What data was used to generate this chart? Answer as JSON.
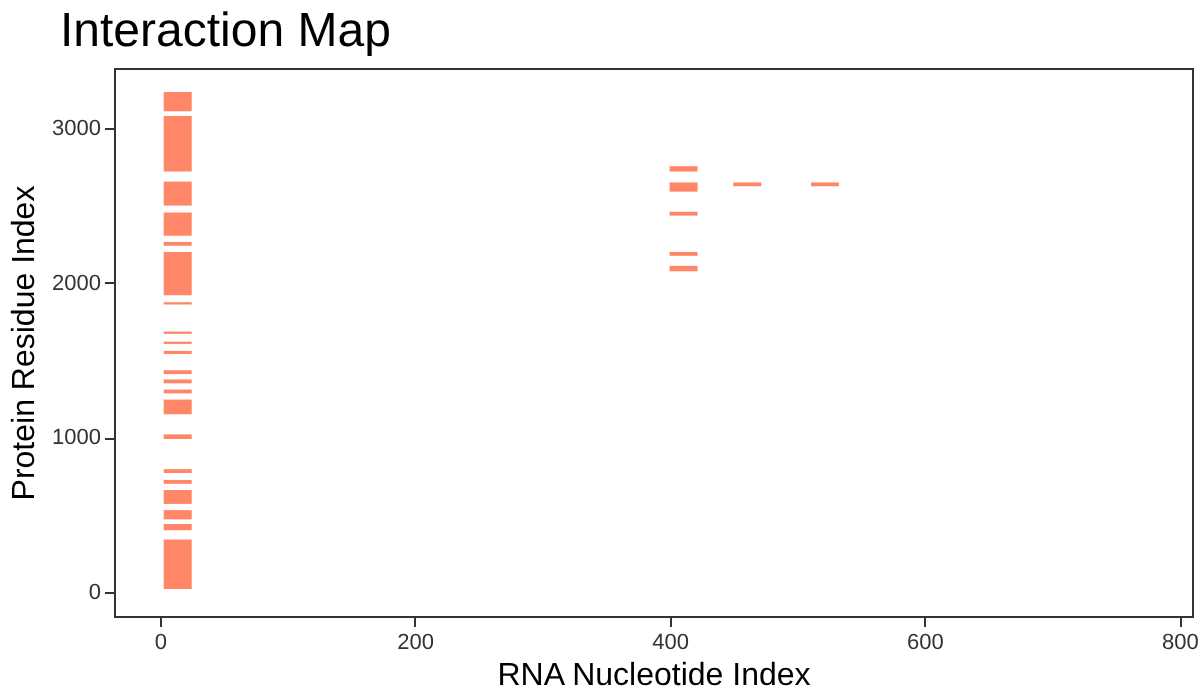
{
  "chart_data": {
    "type": "bar",
    "title": "Interaction Map",
    "xlabel": "RNA Nucleotide Index",
    "ylabel": "Protein Residue Index",
    "series": [
      {
        "color": "#ff7a57",
        "x": [
          14
        ],
        "base": [
          20
        ],
        "values": [
          320
        ]
      },
      {
        "color": "#ff7a57",
        "x": [
          14
        ],
        "base": [
          400
        ],
        "values": [
          40
        ]
      },
      {
        "color": "#ff7a57",
        "x": [
          14
        ],
        "base": [
          470
        ],
        "values": [
          60
        ]
      },
      {
        "color": "#ff7a57",
        "x": [
          14
        ],
        "base": [
          570
        ],
        "values": [
          90
        ]
      },
      {
        "color": "#ff7a57",
        "x": [
          14
        ],
        "base": [
          700
        ],
        "values": [
          25
        ]
      },
      {
        "color": "#ff7a57",
        "x": [
          14
        ],
        "base": [
          770
        ],
        "values": [
          25
        ]
      },
      {
        "color": "#ff7a57",
        "x": [
          14
        ],
        "base": [
          990
        ],
        "values": [
          30
        ]
      },
      {
        "color": "#ff7a57",
        "x": [
          14
        ],
        "base": [
          1150
        ],
        "values": [
          95
        ]
      },
      {
        "color": "#ff7a57",
        "x": [
          14
        ],
        "base": [
          1285
        ],
        "values": [
          25
        ]
      },
      {
        "color": "#ff7a57",
        "x": [
          14
        ],
        "base": [
          1350
        ],
        "values": [
          25
        ]
      },
      {
        "color": "#ff7a57",
        "x": [
          14
        ],
        "base": [
          1410
        ],
        "values": [
          25
        ]
      },
      {
        "color": "#ff7a57",
        "x": [
          14
        ],
        "base": [
          1540
        ],
        "values": [
          20
        ]
      },
      {
        "color": "#ff7a57",
        "x": [
          14
        ],
        "base": [
          1605
        ],
        "values": [
          15
        ]
      },
      {
        "color": "#ff7a57",
        "x": [
          14
        ],
        "base": [
          1670
        ],
        "values": [
          15
        ]
      },
      {
        "color": "#ff7a57",
        "x": [
          14
        ],
        "base": [
          1860
        ],
        "values": [
          15
        ]
      },
      {
        "color": "#ff7a57",
        "x": [
          14
        ],
        "base": [
          1920
        ],
        "values": [
          280
        ]
      },
      {
        "color": "#ff7a57",
        "x": [
          14
        ],
        "base": [
          2240
        ],
        "values": [
          25
        ]
      },
      {
        "color": "#ff7a57",
        "x": [
          14
        ],
        "base": [
          2305
        ],
        "values": [
          150
        ]
      },
      {
        "color": "#ff7a57",
        "x": [
          14
        ],
        "base": [
          2500
        ],
        "values": [
          155
        ]
      },
      {
        "color": "#ff7a57",
        "x": [
          14
        ],
        "base": [
          2720
        ],
        "values": [
          360
        ]
      },
      {
        "color": "#ff7a57",
        "x": [
          14
        ],
        "base": [
          3110
        ],
        "values": [
          125
        ]
      },
      {
        "color": "#ff7a57",
        "x": [
          411
        ],
        "base": [
          2075
        ],
        "values": [
          35
        ]
      },
      {
        "color": "#ff7a57",
        "x": [
          411
        ],
        "base": [
          2175
        ],
        "values": [
          25
        ]
      },
      {
        "color": "#ff7a57",
        "x": [
          411
        ],
        "base": [
          2435
        ],
        "values": [
          25
        ]
      },
      {
        "color": "#ff7a57",
        "x": [
          411
        ],
        "base": [
          2590
        ],
        "values": [
          60
        ]
      },
      {
        "color": "#ff7a57",
        "x": [
          411
        ],
        "base": [
          2720
        ],
        "values": [
          35
        ]
      },
      {
        "color": "#ff7a57",
        "x": [
          461
        ],
        "base": [
          2625
        ],
        "values": [
          25
        ]
      },
      {
        "color": "#ff7a57",
        "x": [
          522
        ],
        "base": [
          2625
        ],
        "values": [
          25
        ]
      }
    ],
    "xlim": [
      -36,
      810
    ],
    "ylim": [
      -155,
      3390
    ],
    "xticks": [
      0,
      200,
      400,
      600,
      800
    ],
    "yticks": [
      0,
      1000,
      2000,
      3000
    ]
  }
}
